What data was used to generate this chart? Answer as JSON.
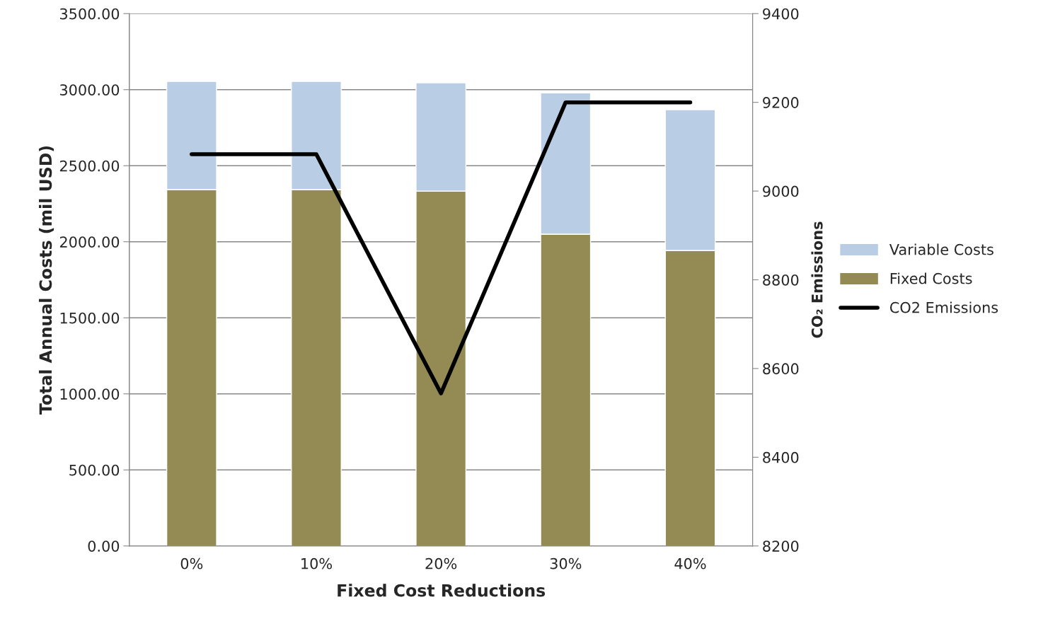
{
  "chart_data": {
    "type": "bar",
    "stacked": true,
    "xlabel": "Fixed Cost Reductions",
    "ylabel": "Total Annual Costs (mil USD)",
    "y2label": "CO₂ Emissions",
    "categories": [
      "0%",
      "10%",
      "20%",
      "30%",
      "40%"
    ],
    "series": [
      {
        "name": "Fixed Costs",
        "color": "#948a54",
        "values": [
          2343,
          2343,
          2333,
          2050,
          1943
        ]
      },
      {
        "name": "Variable Costs",
        "color": "#b9cde5",
        "values": [
          711,
          711,
          712,
          929,
          925
        ]
      },
      {
        "name": "CO2 Emissions",
        "type": "line",
        "axis": "y2",
        "color": "#000000",
        "values": [
          9083,
          9083,
          8544,
          9200,
          9200
        ]
      }
    ],
    "ylim": [
      0,
      3500
    ],
    "yticks": [
      {
        "value": 0,
        "label": "0.00"
      },
      {
        "value": 500,
        "label": "500.00"
      },
      {
        "value": 1000,
        "label": "1000.00"
      },
      {
        "value": 1500,
        "label": "1500.00"
      },
      {
        "value": 2000,
        "label": "2000.00"
      },
      {
        "value": 2500,
        "label": "2500.00"
      },
      {
        "value": 3000,
        "label": "3000.00"
      },
      {
        "value": 3500,
        "label": "3500.00"
      }
    ],
    "y2lim": [
      8200,
      9400
    ],
    "y2ticks": [
      8200,
      8400,
      8600,
      8800,
      9000,
      9200,
      9400
    ],
    "grid": "y",
    "legend": "right",
    "marker": "none",
    "line_style": "solid"
  }
}
